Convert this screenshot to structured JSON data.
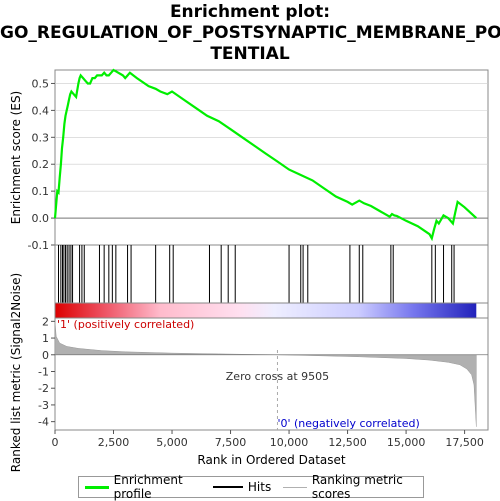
{
  "title_lines": [
    "Enrichment plot:",
    "GO_REGULATION_OF_POSTSYNAPTIC_MEMBRANE_PO",
    "TENTIAL"
  ],
  "colors": {
    "enrichment": "#00ee00",
    "hits": "#000000",
    "metric": "#b0b0b0",
    "grid": "#cccccc",
    "zero_cross_line": "#aaaaaa",
    "pos_label": "#cc0000",
    "neg_label": "#0000cc"
  },
  "chart_data": {
    "type": "line",
    "top_panel": {
      "ylabel": "Enrichment score (ES)",
      "ylim": [
        -0.1,
        0.55
      ],
      "yticks": [
        "0.5",
        "0.4",
        "0.3",
        "0.2",
        "0.1",
        "0.0",
        "-0.1"
      ],
      "ytick_values": [
        0.5,
        0.4,
        0.3,
        0.2,
        0.1,
        0.0,
        -0.1
      ],
      "series": [
        {
          "name": "Enrichment profile",
          "x": [
            0,
            100,
            150,
            200,
            250,
            300,
            350,
            400,
            450,
            500,
            550,
            600,
            650,
            700,
            800,
            900,
            1000,
            1050,
            1100,
            1200,
            1300,
            1400,
            1500,
            1600,
            1700,
            1800,
            1900,
            2000,
            2100,
            2200,
            2300,
            2400,
            2500,
            2600,
            2700,
            2800,
            2900,
            3000,
            3100,
            3200,
            3500,
            4000,
            4300,
            4500,
            4800,
            5000,
            5500,
            6000,
            6500,
            7000,
            7500,
            8000,
            8500,
            9000,
            9500,
            10000,
            10500,
            11000,
            11500,
            12000,
            12500,
            12700,
            13000,
            13200,
            13500,
            14000,
            14300,
            14400,
            14500,
            14600,
            15000,
            15500,
            16000,
            16100,
            16200,
            16300,
            16400,
            16600,
            16800,
            17000,
            17100,
            17200,
            17500,
            18000
          ],
          "y": [
            0.0,
            0.1,
            0.095,
            0.15,
            0.2,
            0.26,
            0.3,
            0.35,
            0.38,
            0.4,
            0.42,
            0.44,
            0.46,
            0.47,
            0.46,
            0.45,
            0.5,
            0.52,
            0.53,
            0.52,
            0.51,
            0.5,
            0.5,
            0.52,
            0.52,
            0.53,
            0.53,
            0.53,
            0.54,
            0.53,
            0.53,
            0.54,
            0.55,
            0.545,
            0.54,
            0.535,
            0.53,
            0.52,
            0.53,
            0.54,
            0.52,
            0.49,
            0.48,
            0.47,
            0.46,
            0.47,
            0.44,
            0.41,
            0.38,
            0.36,
            0.33,
            0.3,
            0.27,
            0.24,
            0.21,
            0.18,
            0.16,
            0.14,
            0.11,
            0.08,
            0.06,
            0.05,
            0.065,
            0.055,
            0.045,
            0.02,
            0.005,
            0.015,
            0.01,
            0.008,
            -0.01,
            -0.03,
            -0.06,
            -0.075,
            -0.04,
            -0.01,
            -0.02,
            0.01,
            0.0,
            -0.02,
            0.02,
            0.06,
            0.04,
            0.0
          ]
        }
      ]
    },
    "hits": [
      150,
      250,
      320,
      380,
      450,
      520,
      600,
      680,
      750,
      1050,
      1150,
      1250,
      1900,
      2100,
      2300,
      2450,
      2600,
      3100,
      3250,
      4300,
      4900,
      5050,
      6600,
      7100,
      7400,
      7700,
      10000,
      10500,
      10600,
      10800,
      12600,
      13000,
      13150,
      14350,
      14450,
      16100,
      16250,
      16600,
      16950,
      17050
    ],
    "bottom_panel": {
      "ylabel": "Ranked list metric (Signal2Noise)",
      "xlabel": "Rank in Ordered Dataset",
      "ylim": [
        -4.5,
        2.2
      ],
      "yticks": [
        "2",
        "1",
        "0",
        "-1",
        "-2",
        "-3",
        "-4"
      ],
      "ytick_values": [
        2,
        1,
        0,
        -1,
        -2,
        -3,
        -4
      ],
      "xlim": [
        0,
        18500
      ],
      "xticks": [
        "0",
        "2,500",
        "5,000",
        "7,500",
        "10,000",
        "12,500",
        "15,000",
        "17,500"
      ],
      "xtick_values": [
        0,
        2500,
        5000,
        7500,
        10000,
        12500,
        15000,
        17500
      ],
      "metric_x": [
        0,
        50,
        200,
        500,
        1000,
        2000,
        3000,
        5000,
        7000,
        9505,
        11000,
        13000,
        15000,
        16000,
        16800,
        17300,
        17600,
        17800,
        17900,
        18000
      ],
      "metric_y": [
        2.0,
        1.1,
        0.7,
        0.5,
        0.38,
        0.25,
        0.18,
        0.1,
        0.05,
        0.0,
        -0.05,
        -0.12,
        -0.22,
        -0.32,
        -0.45,
        -0.6,
        -0.85,
        -1.2,
        -1.8,
        -4.3
      ],
      "zero_cross_label": "Zero cross at 9505",
      "zero_cross": 9505,
      "pos_label": "'1' (positively correlated)",
      "neg_label": "'0' (negatively correlated)"
    }
  },
  "legend": {
    "items": [
      {
        "label": "Enrichment profile"
      },
      {
        "label": "Hits"
      },
      {
        "label": "Ranking metric scores"
      }
    ]
  }
}
